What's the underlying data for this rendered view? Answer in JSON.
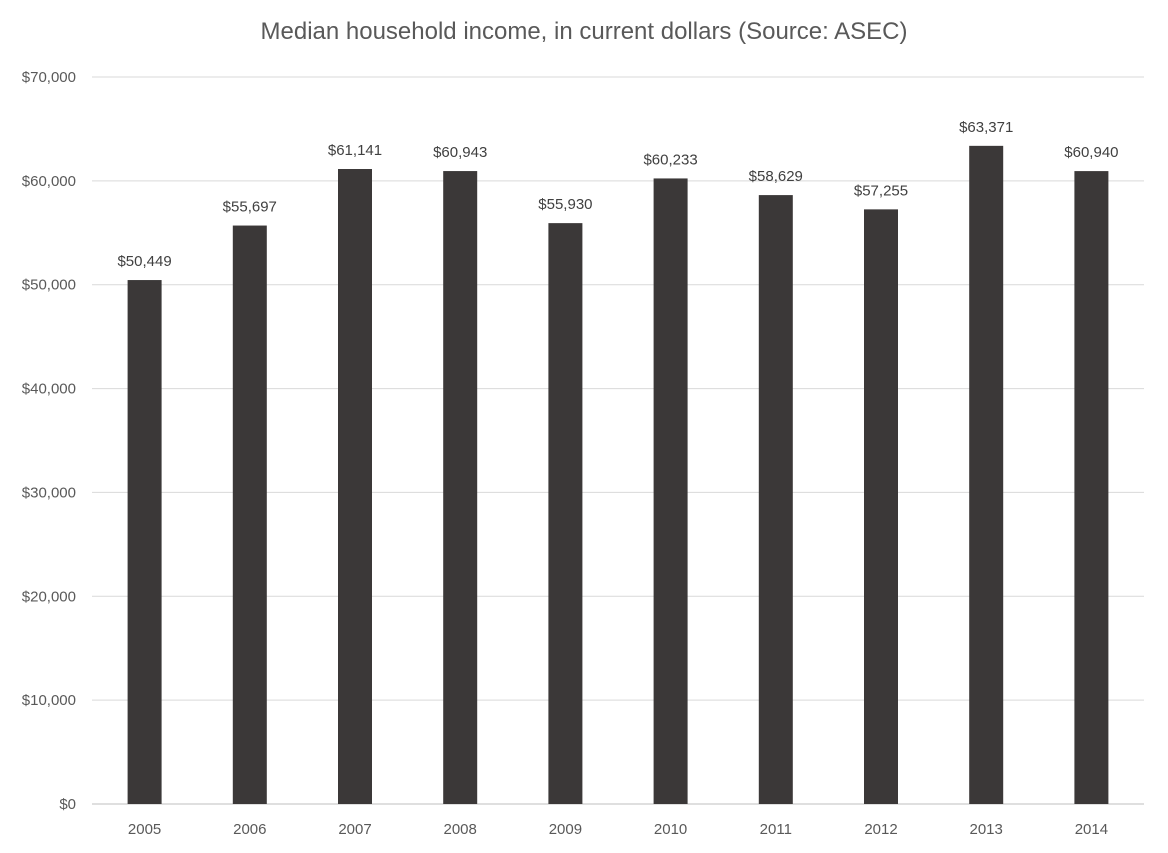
{
  "chart_data": {
    "type": "bar",
    "title": "Median household income, in current dollars (Source: ASEC)",
    "xlabel": "",
    "ylabel": "",
    "categories": [
      "2005",
      "2006",
      "2007",
      "2008",
      "2009",
      "2010",
      "2011",
      "2012",
      "2013",
      "2014"
    ],
    "values": [
      50449,
      55697,
      61141,
      60943,
      55930,
      60233,
      58629,
      57255,
      63371,
      60940
    ],
    "data_labels": [
      "$50,449",
      "$55,697",
      "$61,141",
      "$60,943",
      "$55,930",
      "$60,233",
      "$58,629",
      "$57,255",
      "$63,371",
      "$60,940"
    ],
    "ylim": [
      0,
      70000
    ],
    "yticks": [
      0,
      10000,
      20000,
      30000,
      40000,
      50000,
      60000,
      70000
    ],
    "ytick_labels": [
      "$0",
      "$10,000",
      "$20,000",
      "$30,000",
      "$40,000",
      "$50,000",
      "$60,000",
      "$70,000"
    ],
    "grid": true,
    "legend": "none",
    "bar_color": "#3b3838",
    "grid_color": "#d9d9d9"
  }
}
